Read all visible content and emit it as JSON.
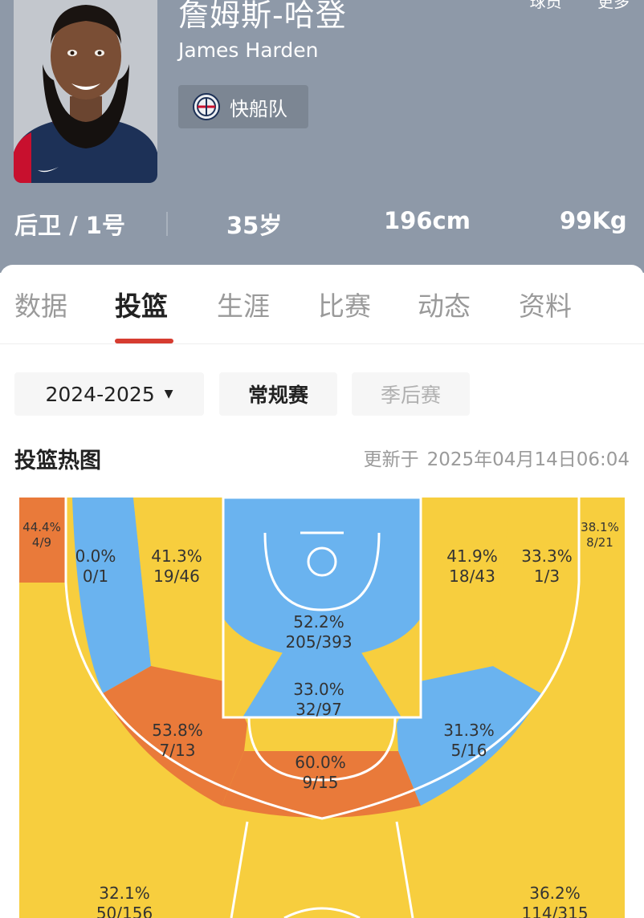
{
  "player": {
    "name_cn": "詹姆斯-哈登",
    "name_en": "James Harden",
    "team": "快船队",
    "position_number": "后卫 / 1号",
    "age": "35岁",
    "height": "196cm",
    "weight": "99Kg"
  },
  "top_links": [
    "球员",
    "更多"
  ],
  "tabs": [
    {
      "label": "数据",
      "active": false
    },
    {
      "label": "投篮",
      "active": true
    },
    {
      "label": "生涯",
      "active": false
    },
    {
      "label": "比赛",
      "active": false
    },
    {
      "label": "动态",
      "active": false
    },
    {
      "label": "资料",
      "active": false
    }
  ],
  "filters": {
    "season": "2024-2025",
    "season_type_regular": "常规赛",
    "season_type_playoff": "季后赛"
  },
  "heatmap": {
    "title": "投篮热图",
    "updated_prefix": "更新于",
    "updated_time": "2025年04月14日06:04"
  },
  "colors": {
    "header_bg": "#8e99a8",
    "hot": "#e97a3a",
    "warm": "#f7ce3e",
    "cold": "#6ab3ef",
    "active_tab_underline": "#d63c30"
  },
  "zones": [
    {
      "id": "left-corner-three",
      "pct": "44.4%",
      "made_att": "4/9",
      "level": "hot"
    },
    {
      "id": "left-baseline-mid",
      "pct": "0.0%",
      "made_att": "0/1",
      "level": "cold"
    },
    {
      "id": "left-short-mid",
      "pct": "41.3%",
      "made_att": "19/46",
      "level": "warm"
    },
    {
      "id": "restricted-area",
      "pct": "52.2%",
      "made_att": "205/393",
      "level": "cold"
    },
    {
      "id": "paint",
      "pct": "33.0%",
      "made_att": "32/97",
      "level": "cold"
    },
    {
      "id": "right-short-mid",
      "pct": "41.9%",
      "made_att": "18/43",
      "level": "warm"
    },
    {
      "id": "right-baseline-mid",
      "pct": "33.3%",
      "made_att": "1/3",
      "level": "warm"
    },
    {
      "id": "right-corner-three",
      "pct": "38.1%",
      "made_att": "8/21",
      "level": "warm"
    },
    {
      "id": "left-wing-mid",
      "pct": "53.8%",
      "made_att": "7/13",
      "level": "hot"
    },
    {
      "id": "top-key-mid",
      "pct": "60.0%",
      "made_att": "9/15",
      "level": "hot"
    },
    {
      "id": "right-wing-mid",
      "pct": "31.3%",
      "made_att": "5/16",
      "level": "cold"
    },
    {
      "id": "left-above-break-three",
      "pct": "32.1%",
      "made_att": "50/156",
      "level": "warm"
    },
    {
      "id": "right-above-break-three",
      "pct": "36.2%",
      "made_att": "114/315",
      "level": "warm"
    }
  ]
}
